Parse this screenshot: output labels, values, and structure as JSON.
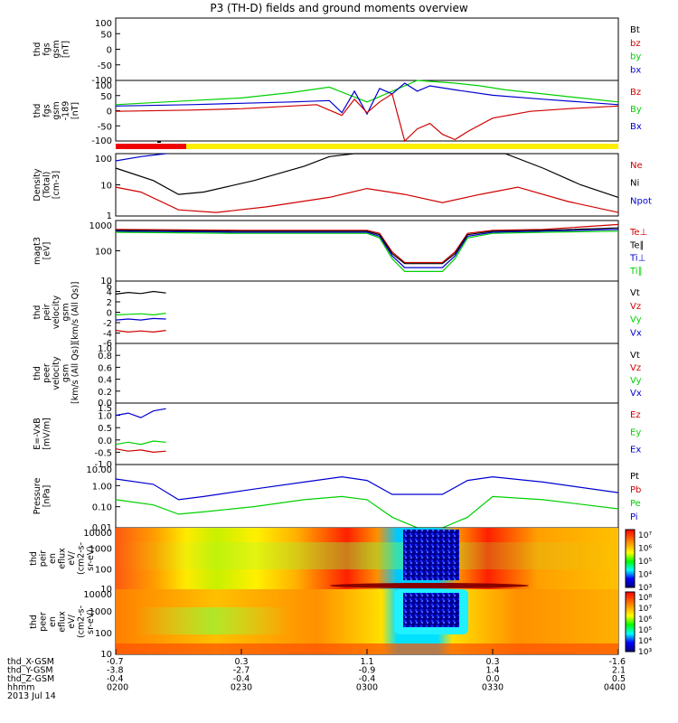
{
  "title": "P3 (TH-D) fields and ground moments overview",
  "chart_data": [
    {
      "type": "line",
      "name": "fgs",
      "ylabel": [
        "thd",
        "fgs",
        "gsm",
        "[nT]"
      ],
      "yticks": [
        "100",
        "50",
        "0",
        "-50",
        "-100"
      ],
      "ylim": [
        -100,
        100
      ],
      "legend": [
        {
          "label": "Bt",
          "color": "#000000"
        },
        {
          "label": "bz",
          "color": "#d00000"
        },
        {
          "label": "by",
          "color": "#00d000"
        },
        {
          "label": "bx",
          "color": "#0000d0"
        }
      ],
      "series": []
    },
    {
      "type": "line",
      "name": "fgs-hi",
      "ylabel": [
        "thd",
        "fgs",
        "gsm",
        "-189",
        "[nT]"
      ],
      "yticks": [
        "100",
        "50",
        "0",
        "-50",
        "-100"
      ],
      "ylim": [
        -125,
        100
      ],
      "legend": [
        {
          "label": "Bz",
          "color": "#d00000"
        },
        {
          "label": "By",
          "color": "#00d000"
        },
        {
          "label": "Bx",
          "color": "#0000d0"
        }
      ],
      "series": [
        {
          "name": "By",
          "color": "#00d000",
          "x": [
            0.0,
            0.3,
            0.5,
            0.7,
            0.85,
            1.0,
            1.05,
            1.2,
            1.35,
            1.45,
            1.55,
            1.7,
            1.85,
            2.0
          ],
          "y": [
            10,
            25,
            35,
            55,
            75,
            20,
            40,
            100,
            90,
            80,
            65,
            50,
            35,
            20
          ]
        },
        {
          "name": "Bx",
          "color": "#0000d0",
          "x": [
            0.0,
            0.3,
            0.5,
            0.7,
            0.85,
            0.9,
            0.95,
            1.0,
            1.05,
            1.1,
            1.15,
            1.2,
            1.25,
            1.35,
            1.5,
            1.7,
            1.85,
            2.0
          ],
          "y": [
            5,
            10,
            15,
            20,
            25,
            -20,
            60,
            -25,
            70,
            50,
            90,
            60,
            80,
            65,
            45,
            30,
            20,
            10
          ]
        },
        {
          "name": "Bz",
          "color": "#d00000",
          "x": [
            0.0,
            0.3,
            0.5,
            0.7,
            0.8,
            0.85,
            0.9,
            0.95,
            1.0,
            1.05,
            1.1,
            1.15,
            1.2,
            1.25,
            1.3,
            1.35,
            1.4,
            1.5,
            1.65,
            1.8,
            2.0
          ],
          "y": [
            -15,
            -10,
            -5,
            5,
            10,
            -10,
            -30,
            30,
            -20,
            20,
            50,
            -125,
            -80,
            -60,
            -100,
            -120,
            -90,
            -40,
            -15,
            -5,
            5
          ]
        }
      ]
    },
    {
      "type": "line",
      "name": "density",
      "ylabel": [
        "Density",
        "(Total)",
        "[cm-3]"
      ],
      "yticks": [
        "100",
        "10",
        "1"
      ],
      "ylim": [
        0.5,
        200
      ],
      "log": true,
      "legend": [
        {
          "label": "Ne",
          "color": "#d00000"
        },
        {
          "label": "Ni",
          "color": "#000000"
        },
        {
          "label": "Npot",
          "color": "#0000d0"
        }
      ],
      "series": [
        {
          "name": "Ni",
          "color": "#000000",
          "x": [
            0.0,
            0.15,
            0.25,
            0.35,
            0.55,
            0.75,
            0.85,
            0.95,
            1.05,
            1.15,
            1.3,
            1.45,
            1.55,
            1.7,
            1.85,
            2.0
          ],
          "y": [
            50,
            15,
            4,
            5,
            15,
            60,
            150,
            200,
            200,
            200,
            200,
            200,
            200,
            50,
            10,
            3
          ]
        },
        {
          "name": "Npot",
          "color": "#0000d0",
          "x": [
            0.0,
            0.1,
            0.2
          ],
          "y": [
            100,
            150,
            220
          ]
        },
        {
          "name": "Ne",
          "color": "#d00000",
          "x": [
            0.0,
            0.1,
            0.25,
            0.4,
            0.6,
            0.85,
            1.0,
            1.15,
            1.3,
            1.45,
            1.6,
            1.8,
            2.0
          ],
          "y": [
            8,
            5,
            0.9,
            0.7,
            1.2,
            3,
            7,
            4,
            1.8,
            4,
            8,
            2,
            0.7
          ]
        }
      ]
    },
    {
      "type": "line",
      "name": "temperature",
      "ylabel": [
        "magt3",
        "[eV]"
      ],
      "yticks": [
        "1000",
        "100",
        "10"
      ],
      "ylim": [
        3,
        1500
      ],
      "log": true,
      "legend": [
        {
          "label": "Te⊥",
          "color": "#d00000"
        },
        {
          "label": "Te∥",
          "color": "#000000"
        },
        {
          "label": "Ti⊥",
          "color": "#0000d0"
        },
        {
          "label": "Ti∥",
          "color": "#00d000"
        }
      ],
      "series": [
        {
          "name": "Te⊥",
          "color": "#d00000",
          "x": [
            0.0,
            0.5,
            1.0,
            1.05,
            1.1,
            1.15,
            1.2,
            1.3,
            1.35,
            1.4,
            1.5,
            1.7,
            2.0
          ],
          "y": [
            600,
            550,
            550,
            400,
            60,
            20,
            20,
            20,
            60,
            400,
            550,
            600,
            1000
          ]
        },
        {
          "name": "Te∥",
          "color": "#000000",
          "x": [
            0.0,
            0.5,
            1.0,
            1.05,
            1.1,
            1.15,
            1.2,
            1.3,
            1.35,
            1.4,
            1.5,
            1.7,
            2.0
          ],
          "y": [
            550,
            500,
            500,
            350,
            50,
            18,
            18,
            18,
            50,
            350,
            500,
            550,
            700
          ]
        },
        {
          "name": "Ti⊥",
          "color": "#0000d0",
          "x": [
            0.0,
            0.5,
            1.0,
            1.05,
            1.1,
            1.15,
            1.2,
            1.3,
            1.35,
            1.4,
            1.5,
            1.7,
            2.0
          ],
          "y": [
            500,
            450,
            450,
            300,
            40,
            12,
            12,
            12,
            40,
            300,
            450,
            500,
            600
          ]
        },
        {
          "name": "Ti∥",
          "color": "#00d000",
          "x": [
            0.0,
            0.5,
            1.0,
            1.05,
            1.1,
            1.15,
            1.2,
            1.3,
            1.35,
            1.4,
            1.5,
            1.7,
            2.0
          ],
          "y": [
            450,
            400,
            400,
            250,
            30,
            8,
            8,
            8,
            30,
            250,
            400,
            450,
            500
          ]
        }
      ]
    },
    {
      "type": "line",
      "name": "ion-velocity",
      "ylabel": [
        "thd",
        "peir",
        "velocity",
        "gsm",
        "[km/s (All Qs)]"
      ],
      "yticks": [
        "6",
        "4",
        "2",
        "0",
        "-2",
        "-4",
        "-6"
      ],
      "ylim": [
        -6,
        6
      ],
      "legend": [
        {
          "label": "Vt",
          "color": "#000000"
        },
        {
          "label": "Vz",
          "color": "#d00000"
        },
        {
          "label": "Vy",
          "color": "#00d000"
        },
        {
          "label": "Vx",
          "color": "#0000d0"
        }
      ],
      "series": [
        {
          "name": "Vt",
          "color": "#000000",
          "x": [
            0.0,
            0.05,
            0.1,
            0.15,
            0.2
          ],
          "y": [
            3.5,
            3.8,
            3.6,
            4.0,
            3.7
          ]
        },
        {
          "name": "Vy",
          "color": "#00d000",
          "x": [
            0.0,
            0.05,
            0.1,
            0.15,
            0.2
          ],
          "y": [
            -0.5,
            -0.4,
            -0.3,
            -0.5,
            -0.2
          ]
        },
        {
          "name": "Vx",
          "color": "#0000d0",
          "x": [
            0.0,
            0.05,
            0.1,
            0.15,
            0.2
          ],
          "y": [
            -1.5,
            -1.3,
            -1.5,
            -1.2,
            -1.3
          ]
        },
        {
          "name": "Vz",
          "color": "#d00000",
          "x": [
            0.0,
            0.05,
            0.1,
            0.15,
            0.2
          ],
          "y": [
            -3.5,
            -3.8,
            -3.6,
            -3.8,
            -3.5
          ]
        }
      ]
    },
    {
      "type": "line",
      "name": "electron-velocity",
      "ylabel": [
        "thd",
        "peer",
        "velocity",
        "gsm",
        "[km/s (All Qs)]"
      ],
      "yticks": [
        "1.0",
        "0.8",
        "0.6",
        "0.4",
        "0.2",
        "0.0"
      ],
      "ylim": [
        0,
        1
      ],
      "legend": [
        {
          "label": "Vt",
          "color": "#000000"
        },
        {
          "label": "Vz",
          "color": "#d00000"
        },
        {
          "label": "Vy",
          "color": "#00d000"
        },
        {
          "label": "Vx",
          "color": "#0000d0"
        }
      ],
      "series": []
    },
    {
      "type": "line",
      "name": "efield",
      "ylabel": [
        "E=-VxB",
        "[mV/m]"
      ],
      "yticks": [
        "1.5",
        "1.0",
        "0.5",
        "0.0",
        "-0.5",
        "-1.0"
      ],
      "ylim": [
        -1.0,
        1.75
      ],
      "legend": [
        {
          "label": "Ez",
          "color": "#d00000"
        },
        {
          "label": "Ey",
          "color": "#00d000"
        },
        {
          "label": "Ex",
          "color": "#0000d0"
        }
      ],
      "series": [
        {
          "name": "Ex",
          "color": "#0000d0",
          "x": [
            0.0,
            0.05,
            0.1,
            0.15,
            0.2
          ],
          "y": [
            1.2,
            1.3,
            1.1,
            1.4,
            1.5
          ]
        },
        {
          "name": "Ey",
          "color": "#00d000",
          "x": [
            0.0,
            0.05,
            0.1,
            0.15,
            0.2
          ],
          "y": [
            -0.1,
            0.0,
            -0.1,
            0.05,
            0.0
          ]
        },
        {
          "name": "Ez",
          "color": "#d00000",
          "x": [
            0.0,
            0.05,
            0.1,
            0.15,
            0.2
          ],
          "y": [
            -0.3,
            -0.4,
            -0.35,
            -0.45,
            -0.4
          ]
        }
      ]
    },
    {
      "type": "line",
      "name": "pressure",
      "ylabel": [
        "Pressure",
        "[nPa]"
      ],
      "yticks": [
        "10.00",
        "1.00",
        "0.10",
        "0.01"
      ],
      "ylim": [
        0.005,
        20
      ],
      "log": true,
      "legend": [
        {
          "label": "Pt",
          "color": "#000000"
        },
        {
          "label": "Pb",
          "color": "#d00000"
        },
        {
          "label": "Pe",
          "color": "#00d000"
        },
        {
          "label": "Pi",
          "color": "#0000d0"
        }
      ],
      "series": [
        {
          "name": "Pi",
          "color": "#0000d0",
          "x": [
            0.0,
            0.15,
            0.25,
            0.35,
            0.55,
            0.75,
            0.9,
            1.0,
            1.1,
            1.2,
            1.3,
            1.4,
            1.5,
            1.7,
            2.0
          ],
          "y": [
            3,
            1.5,
            0.2,
            0.3,
            0.8,
            2,
            4,
            2.5,
            0.4,
            0.4,
            0.4,
            2.5,
            4,
            2,
            0.5
          ]
        },
        {
          "name": "Pe",
          "color": "#00d000",
          "x": [
            0.0,
            0.15,
            0.25,
            0.35,
            0.55,
            0.75,
            0.9,
            1.0,
            1.1,
            1.2,
            1.3,
            1.4,
            1.5,
            1.7,
            2.0
          ],
          "y": [
            0.2,
            0.1,
            0.03,
            0.04,
            0.08,
            0.2,
            0.3,
            0.2,
            0.02,
            0.005,
            0.005,
            0.02,
            0.3,
            0.2,
            0.06
          ]
        }
      ]
    },
    {
      "type": "heatmap",
      "name": "ion-spectrogram",
      "ylabel": [
        "thd",
        "peir",
        "en",
        "eflux",
        "eV/",
        "(cm2-s-",
        "sr-eV)"
      ],
      "yticks": [
        "10000",
        "1000",
        "100",
        "10"
      ],
      "colorbar": [
        "10⁷",
        "10⁶",
        "10⁵",
        "10⁴",
        "10³"
      ]
    },
    {
      "type": "heatmap",
      "name": "electron-spectrogram",
      "ylabel": [
        "thd",
        "peer",
        "en",
        "eflux",
        "eV/",
        "(cm2-s-",
        "sr-eV)"
      ],
      "yticks": [
        "10000",
        "1000",
        "100",
        "10"
      ],
      "colorbar": [
        "10⁸",
        "10⁷",
        "10⁶",
        "10⁵",
        "10⁴",
        "10³"
      ]
    }
  ],
  "xaxis": {
    "rows": [
      {
        "label": "thd_X-GSM",
        "values": [
          "-0.7",
          "0.3",
          "1.1",
          "0.3",
          "-1.6"
        ]
      },
      {
        "label": "thd_Y-GSM",
        "values": [
          "-3.8",
          "-2.7",
          "-0.9",
          "1.4",
          "2.1"
        ]
      },
      {
        "label": "thd_Z-GSM",
        "values": [
          "-0.4",
          "-0.4",
          "-0.4",
          "0.0",
          "0.5"
        ]
      },
      {
        "label": "hhmm",
        "values": [
          "0200",
          "0230",
          "0300",
          "0330",
          "0400"
        ]
      }
    ],
    "date": "2013 Jul 14"
  }
}
